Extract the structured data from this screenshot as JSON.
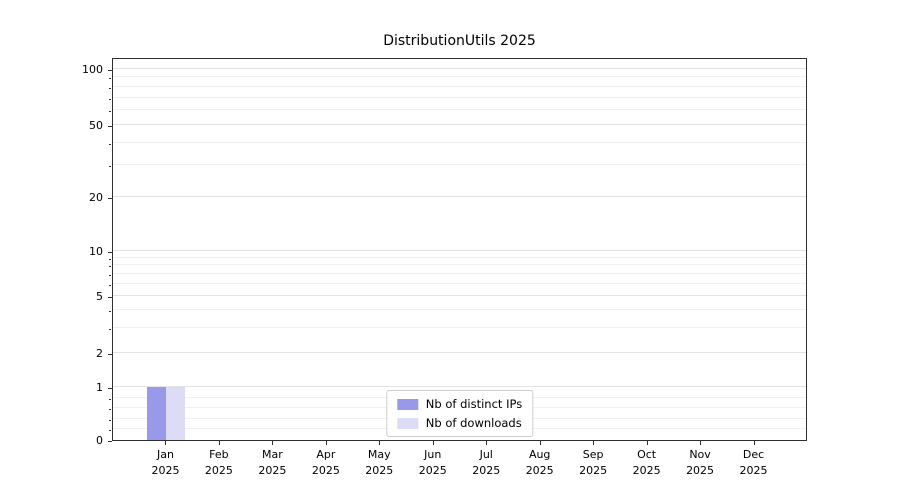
{
  "chart_data": {
    "type": "bar",
    "title": "DistributionUtils 2025",
    "x_tick_labels": [
      [
        "Jan",
        "2025"
      ],
      [
        "Feb",
        "2025"
      ],
      [
        "Mar",
        "2025"
      ],
      [
        "Apr",
        "2025"
      ],
      [
        "May",
        "2025"
      ],
      [
        "Jun",
        "2025"
      ],
      [
        "Jul",
        "2025"
      ],
      [
        "Aug",
        "2025"
      ],
      [
        "Sep",
        "2025"
      ],
      [
        "Oct",
        "2025"
      ],
      [
        "Nov",
        "2025"
      ],
      [
        "Dec",
        "2025"
      ]
    ],
    "series": [
      {
        "name": "Nb of distinct IPs",
        "color": "#9999ea",
        "values": [
          1,
          0,
          0,
          0,
          0,
          0,
          0,
          0,
          0,
          0,
          0,
          0
        ]
      },
      {
        "name": "Nb of downloads",
        "color": "#dcdcf7",
        "values": [
          1,
          0,
          0,
          0,
          0,
          0,
          0,
          0,
          0,
          0,
          0,
          0
        ]
      }
    ],
    "y_axis": {
      "scale": "symlog",
      "ticks": [
        0,
        1,
        2,
        5,
        10,
        20,
        50,
        100
      ],
      "range": [
        0,
        115
      ]
    },
    "y_scale_anchors": [
      [
        0,
        0
      ],
      [
        1,
        0.138
      ],
      [
        2,
        0.227
      ],
      [
        5,
        0.376
      ],
      [
        10,
        0.494
      ],
      [
        20,
        0.634
      ],
      [
        50,
        0.822
      ],
      [
        100,
        0.969
      ]
    ],
    "grid": {
      "show": true,
      "minor_values": [
        0.2,
        0.4,
        0.6,
        0.8,
        3,
        4,
        6,
        7,
        8,
        9,
        30,
        40,
        60,
        70,
        80,
        90
      ]
    },
    "legend": {
      "position": "lower center",
      "entries": [
        "Nb of distinct IPs",
        "Nb of downloads"
      ]
    }
  }
}
